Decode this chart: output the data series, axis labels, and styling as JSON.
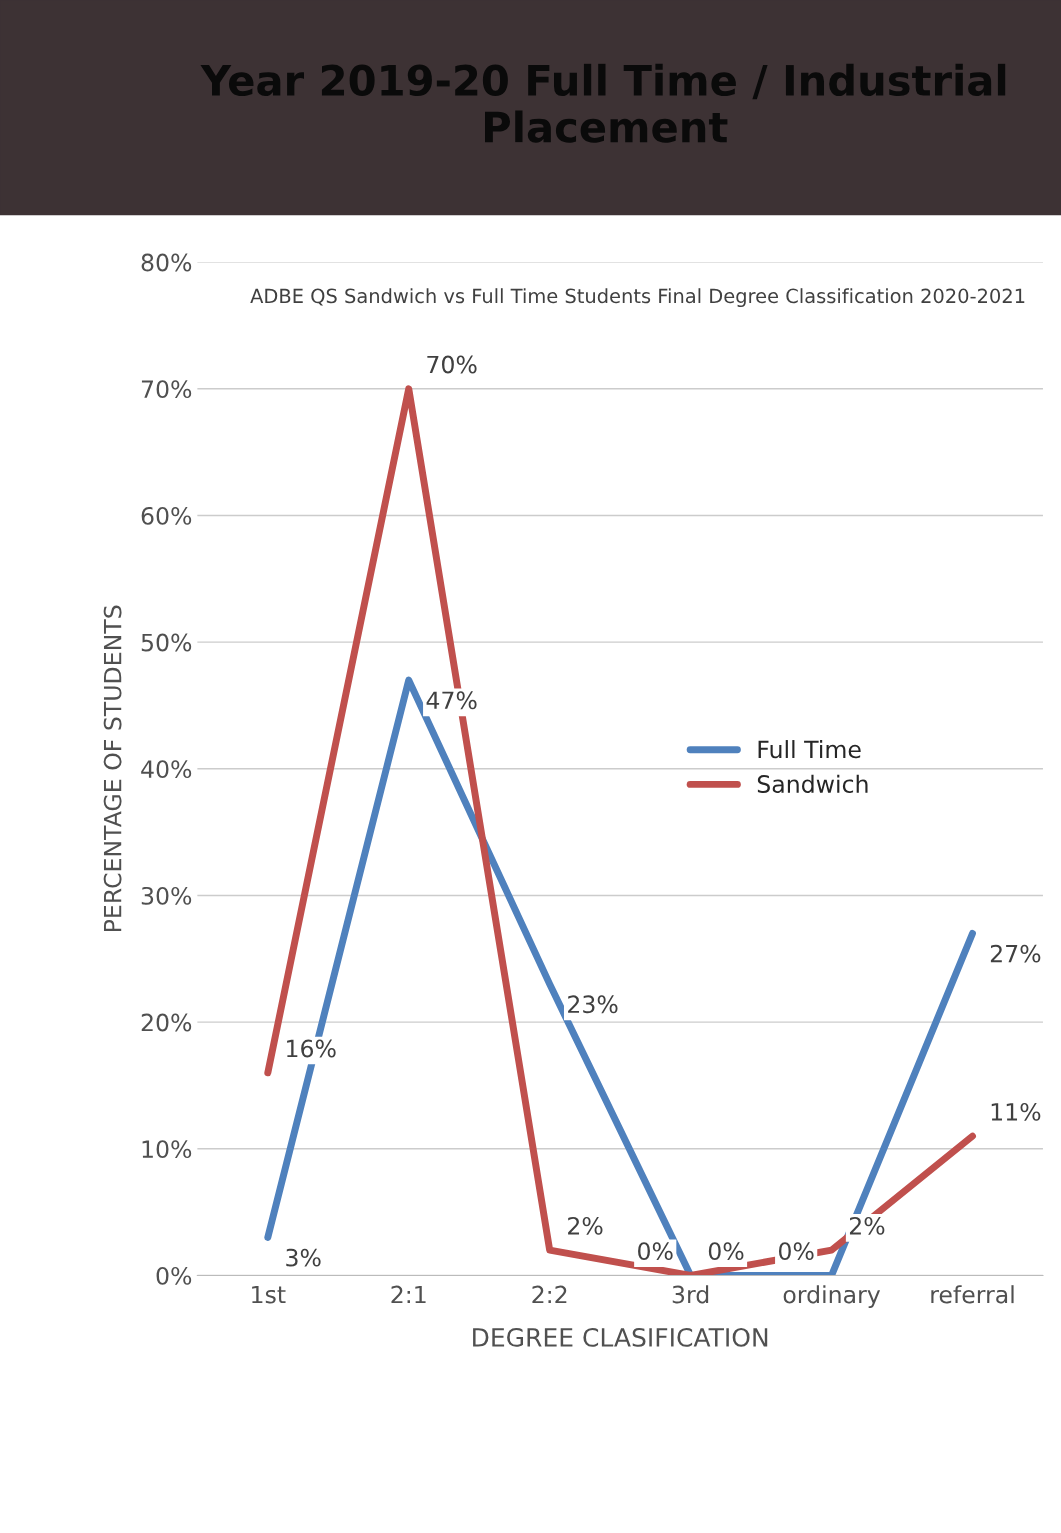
{
  "chart_data": {
    "type": "line",
    "title": "Year 2019-20 Full Time / Industrial Placement",
    "subtitle": "ADBE QS Sandwich vs Full Time Students Final Degree Classification 2020-2021",
    "xlabel": "DEGREE CLASIFICATION",
    "ylabel": "PERCENTAGE OF STUDENTS",
    "categories": [
      "1st",
      "2:1",
      "2:2",
      "3rd",
      "ordinary",
      "referral"
    ],
    "series": [
      {
        "name": "Full Time",
        "color": "#4f81bd",
        "values": [
          3,
          47,
          23,
          0,
          0,
          27
        ],
        "value_labels": [
          "3%",
          "47%",
          "23%",
          "0%",
          "0%",
          "27%"
        ]
      },
      {
        "name": "Sandwich",
        "color": "#c0504d",
        "values": [
          16,
          70,
          2,
          0,
          2,
          11
        ],
        "value_labels": [
          "16%",
          "70%",
          "2%",
          "0%",
          "2%",
          "11%"
        ]
      }
    ],
    "ylim": [
      0,
      80
    ],
    "yticks": [
      {
        "value": 0,
        "label": "0%"
      },
      {
        "value": 10,
        "label": "10%"
      },
      {
        "value": 20,
        "label": "20%"
      },
      {
        "value": 30,
        "label": "30%"
      },
      {
        "value": 40,
        "label": "40%"
      },
      {
        "value": 50,
        "label": "50%"
      },
      {
        "value": 60,
        "label": "60%"
      },
      {
        "value": 70,
        "label": "70%"
      },
      {
        "value": 80,
        "label": "80%"
      }
    ],
    "grid": "y",
    "legend": "center right",
    "marker": "none",
    "line_style": "solid"
  }
}
